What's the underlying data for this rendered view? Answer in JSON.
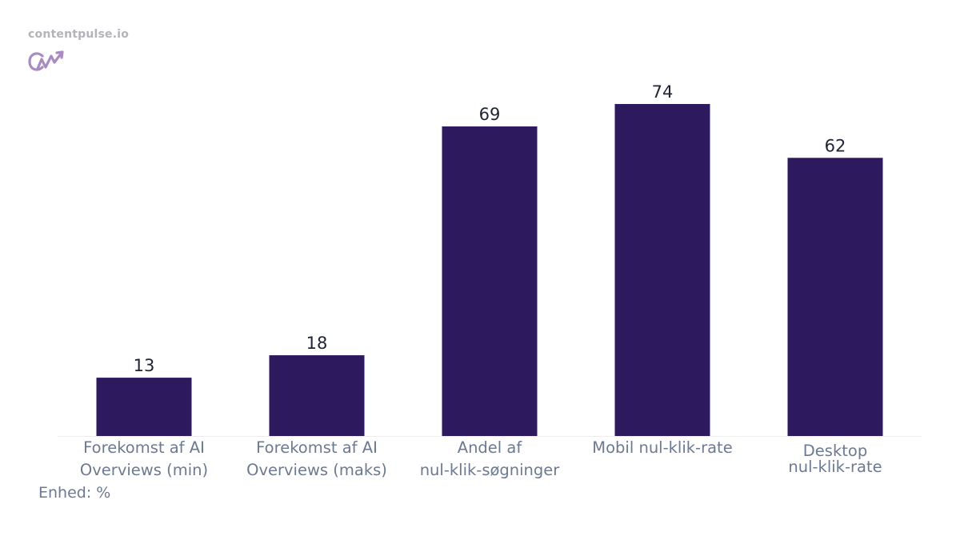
{
  "brand": {
    "site_name": "contentpulse.io",
    "logo_icon": "cw-trend-logo-icon"
  },
  "unit_note": "Enhed: %",
  "colors": {
    "bar": "#2d1a5e",
    "tick_label": "#6b7a90",
    "value_label": "#1f2433",
    "axis_line": "#eeeeee",
    "logo": "#a98bc2"
  },
  "chart_data": {
    "type": "bar",
    "categories": [
      [
        "Forekomst af AI",
        "Overviews (min)"
      ],
      [
        "Forekomst af AI",
        "Overviews (maks)"
      ],
      [
        "Andel af",
        "nul-klik-søgninger"
      ],
      [
        "Mobil nul-klik-rate"
      ],
      [
        "Desktop",
        "nul-klik-rate"
      ]
    ],
    "values": [
      13,
      18,
      69,
      74,
      62
    ],
    "data_labels": [
      "13",
      "18",
      "69",
      "74",
      "62"
    ],
    "title": "",
    "xlabel": "",
    "ylabel": "",
    "ylim": [
      0,
      74
    ],
    "grid": false,
    "legend": "none"
  }
}
